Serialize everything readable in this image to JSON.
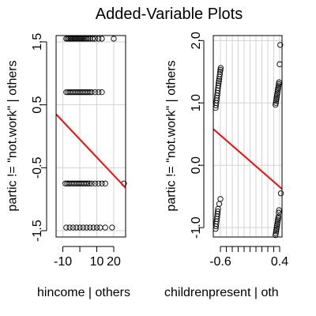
{
  "title": "Added-Variable Plots",
  "chart_data": [
    {
      "type": "scatter",
      "xlabel": "hincome | others",
      "ylabel": "partic != \"not.work\" | others",
      "xlim": [
        -14,
        27
      ],
      "ylim": [
        -1.6,
        1.6
      ],
      "xticks": [
        -10,
        0,
        10,
        20
      ],
      "xtick_labels": [
        "-10",
        "10",
        "20"
      ],
      "xtick_label_values": [
        -10,
        10,
        20
      ],
      "yticks": [
        -1.5,
        -0.5,
        0.5,
        1.5
      ],
      "ytick_labels": [
        "-1.5",
        "-0.5",
        "0.5",
        "1.5"
      ],
      "grid": true,
      "points_x": [
        -8,
        -7.2,
        -6.4,
        -5.6,
        -4.8,
        -4,
        -3.2,
        -2.4,
        -1.6,
        -0.8,
        0,
        0.8,
        1.6,
        2.4,
        3.2,
        4,
        5,
        6,
        7.5,
        9,
        11,
        13,
        20,
        -8,
        -7,
        -6,
        -5,
        -4,
        -3,
        -2,
        -1,
        0,
        1,
        2,
        3,
        4,
        5,
        6,
        7,
        9,
        11,
        13,
        -8.5,
        -7.5,
        -6.5,
        -5.5,
        -4.5,
        -3.5,
        -2.5,
        -1.5,
        -0.5,
        0.5,
        1.5,
        2.5,
        3.5,
        4.5,
        5.5,
        7,
        9,
        11,
        13,
        15,
        26,
        -8,
        -6,
        -4,
        -2,
        0,
        2,
        4,
        6,
        8,
        10,
        12,
        15,
        19
      ],
      "points_y": [
        1.55,
        1.55,
        1.55,
        1.55,
        1.55,
        1.55,
        1.55,
        1.55,
        1.55,
        1.55,
        1.55,
        1.55,
        1.55,
        1.55,
        1.55,
        1.55,
        1.55,
        1.55,
        1.55,
        1.55,
        1.55,
        1.55,
        1.55,
        0.7,
        0.7,
        0.7,
        0.7,
        0.7,
        0.7,
        0.7,
        0.7,
        0.7,
        0.7,
        0.7,
        0.7,
        0.7,
        0.7,
        0.7,
        0.7,
        0.7,
        0.7,
        0.7,
        -0.75,
        -0.75,
        -0.75,
        -0.75,
        -0.75,
        -0.75,
        -0.75,
        -0.75,
        -0.75,
        -0.75,
        -0.75,
        -0.75,
        -0.75,
        -0.75,
        -0.75,
        -0.75,
        -0.75,
        -0.75,
        -0.75,
        -0.75,
        -0.75,
        -1.45,
        -1.45,
        -1.45,
        -1.45,
        -1.45,
        -1.45,
        -1.45,
        -1.45,
        -1.45,
        -1.45,
        -1.45,
        -1.45,
        -1.45
      ],
      "fit_line": {
        "x": [
          -14,
          27
        ],
        "y": [
          0.35,
          -0.82
        ],
        "color": "#ee1111"
      }
    },
    {
      "type": "scatter",
      "xlabel": "childrenpresent | oth",
      "ylabel": "partic != \"not.work\" | others",
      "xlim": [
        -0.72,
        0.44
      ],
      "ylim": [
        -1.15,
        2.08
      ],
      "xticks": [
        -0.6,
        -0.5,
        -0.4,
        -0.3,
        -0.2,
        -0.1,
        0.0,
        0.1,
        0.2,
        0.3,
        0.4
      ],
      "xtick_labels": [
        "-0.6",
        "0.4"
      ],
      "xtick_label_values": [
        -0.6,
        0.4
      ],
      "yticks": [
        -1.0,
        0.0,
        1.0,
        2.0
      ],
      "ytick_labels": [
        "-1.0",
        "0.0",
        "1.0",
        "2.0"
      ],
      "grid": true,
      "points_x": [
        -0.68,
        -0.675,
        -0.67,
        -0.665,
        -0.66,
        -0.655,
        -0.65,
        -0.645,
        -0.64,
        -0.635,
        -0.63,
        -0.625,
        -0.62,
        -0.615,
        -0.61,
        -0.605,
        -0.6,
        -0.595,
        0.33,
        0.335,
        0.34,
        0.345,
        0.35,
        0.355,
        0.36,
        0.365,
        0.37,
        0.375,
        0.38,
        0.385,
        0.39,
        0.4,
        0.41,
        -0.68,
        -0.675,
        -0.67,
        -0.665,
        -0.66,
        -0.655,
        -0.65,
        -0.645,
        -0.64,
        -0.62,
        -0.6,
        0.33,
        0.335,
        0.34,
        0.345,
        0.35,
        0.355,
        0.36,
        0.365,
        0.37,
        0.375,
        0.38,
        0.385,
        0.39,
        0.42
      ],
      "points_y": [
        0.92,
        0.96,
        1.0,
        1.04,
        1.08,
        1.12,
        1.16,
        1.2,
        1.24,
        1.28,
        1.32,
        1.35,
        1.38,
        1.42,
        1.46,
        1.5,
        1.53,
        1.56,
        0.97,
        1.0,
        1.03,
        1.06,
        1.09,
        1.12,
        1.15,
        1.18,
        1.21,
        1.24,
        1.27,
        1.3,
        1.33,
        1.62,
        1.93,
        -1.02,
        -0.98,
        -0.94,
        -0.9,
        -0.86,
        -0.82,
        -0.78,
        -0.74,
        -0.7,
        -0.62,
        -0.54,
        -1.12,
        -1.09,
        -1.06,
        -1.03,
        -1.0,
        -0.97,
        -0.94,
        -0.91,
        -0.88,
        -0.85,
        -0.82,
        -0.76,
        -0.72,
        -0.45
      ],
      "fit_line": {
        "x": [
          -0.72,
          0.44
        ],
        "y": [
          0.58,
          -0.38
        ],
        "color": "#ee1111"
      }
    }
  ]
}
